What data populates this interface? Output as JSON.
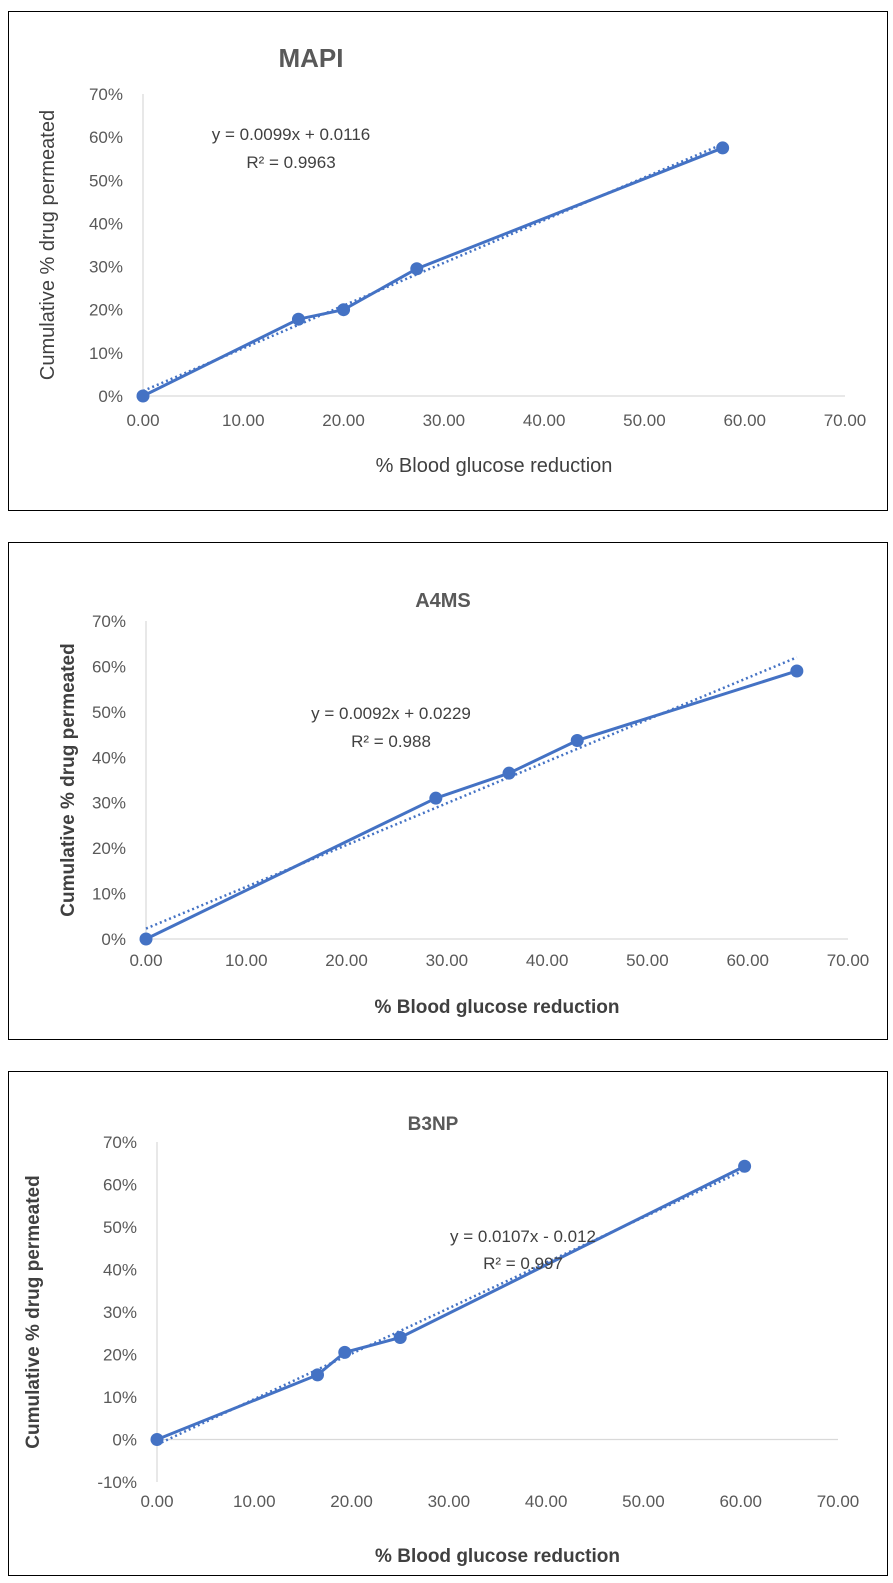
{
  "colors": {
    "series": "#4472C4",
    "axis": "#D9D9D9",
    "text": "#595959",
    "frame": "#000000"
  },
  "chart_data": [
    {
      "type": "scatter",
      "title": "MAPI",
      "xlabel": "% Blood glucose reduction",
      "ylabel": "Cumulative % drug permeated",
      "xlim": [
        0,
        70
      ],
      "ylim": [
        0,
        0.7
      ],
      "x_ticks": [
        "0.00",
        "10.00",
        "20.00",
        "30.00",
        "40.00",
        "50.00",
        "60.00",
        "70.00"
      ],
      "y_ticks": [
        "0%",
        "10%",
        "20%",
        "30%",
        "40%",
        "50%",
        "60%",
        "70%"
      ],
      "grid": false,
      "series": [
        {
          "x": [
            0,
            15.5,
            20,
            27.3,
            57.8
          ],
          "y": [
            0,
            0.178,
            0.2,
            0.295,
            0.575
          ]
        }
      ],
      "trendline": {
        "type": "linear",
        "slope": 0.0099,
        "intercept": 0.0116,
        "equation": "y = 0.0099x + 0.0116",
        "r2": "R² = 0.9963"
      }
    },
    {
      "type": "scatter",
      "title": "A4MS",
      "xlabel": "% Blood glucose reduction",
      "ylabel": "Cumulative % drug permeated",
      "xlim": [
        0,
        70
      ],
      "ylim": [
        0,
        0.7
      ],
      "x_ticks": [
        "0.00",
        "10.00",
        "20.00",
        "30.00",
        "40.00",
        "50.00",
        "60.00",
        "70.00"
      ],
      "y_ticks": [
        "0%",
        "10%",
        "20%",
        "30%",
        "40%",
        "50%",
        "60%",
        "70%"
      ],
      "grid": false,
      "series": [
        {
          "x": [
            0,
            28.9,
            36.2,
            43,
            64.9
          ],
          "y": [
            0,
            0.31,
            0.365,
            0.437,
            0.59
          ]
        }
      ],
      "trendline": {
        "type": "linear",
        "slope": 0.0092,
        "intercept": 0.0229,
        "equation": "y = 0.0092x + 0.0229",
        "r2": "R² = 0.988"
      }
    },
    {
      "type": "scatter",
      "title": "B3NP",
      "xlabel": "% Blood glucose reduction",
      "ylabel": "Cumulative % drug permeated",
      "xlim": [
        0,
        70
      ],
      "ylim": [
        -0.1,
        0.7
      ],
      "x_ticks": [
        "0.00",
        "10.00",
        "20.00",
        "30.00",
        "40.00",
        "50.00",
        "60.00",
        "70.00"
      ],
      "y_ticks": [
        "-10%",
        "0%",
        "10%",
        "20%",
        "30%",
        "40%",
        "50%",
        "60%",
        "70%"
      ],
      "grid": false,
      "series": [
        {
          "x": [
            0,
            16.5,
            19.3,
            25,
            60.4
          ],
          "y": [
            0,
            0.152,
            0.205,
            0.24,
            0.643
          ]
        }
      ],
      "trendline": {
        "type": "linear",
        "slope": 0.0107,
        "intercept": -0.012,
        "equation": "y = 0.0107x - 0.012",
        "r2": "R² = 0.997"
      }
    }
  ]
}
